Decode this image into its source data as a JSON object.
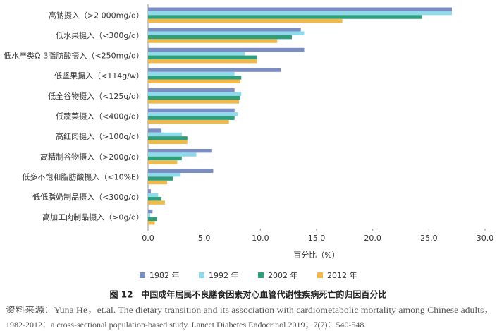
{
  "chart_data": {
    "type": "hbar",
    "categories": [
      "高钠摄入（>2 000mg/d）",
      "低水果摄入（<300g/d）",
      "低水产类Ω-3脂肪酸摄入（<250mg/d）",
      "低坚果摄入（<114g/w）",
      "低全谷物摄入（<125g/d）",
      "低蔬菜摄入（<400g/d）",
      "高红肉摄入（>100g/d）",
      "高精制谷物摄入（>200g/d）",
      "低多不饱和脂肪酸摄入（<10%E）",
      "低低脂奶制品摄入（<300g/d）",
      "高加工肉制品摄入（>0g/d）"
    ],
    "series": [
      {
        "name": "1982 年",
        "color": "#7b8ec4",
        "values": [
          27.05,
          13.6,
          13.9,
          11.8,
          7.7,
          7.7,
          1.2,
          5.7,
          5.8,
          0.25,
          0.4
        ]
      },
      {
        "name": "1992 年",
        "color": "#8ed9ea",
        "values": [
          27.05,
          13.9,
          8.6,
          7.7,
          8.3,
          8.0,
          3.0,
          4.3,
          2.9,
          0.9,
          0.2
        ]
      },
      {
        "name": "2002 年",
        "color": "#2f9e7b",
        "values": [
          24.4,
          12.8,
          9.7,
          8.3,
          8.2,
          7.7,
          3.5,
          3.0,
          2.2,
          1.2,
          0.8
        ]
      },
      {
        "name": "2012 年",
        "color": "#f0b94a",
        "values": [
          17.3,
          11.5,
          9.7,
          8.2,
          8.1,
          7.2,
          3.5,
          2.6,
          1.7,
          1.5,
          0.6
        ]
      }
    ],
    "xlim": [
      0,
      30
    ],
    "xticks": [
      {
        "value": 0,
        "label": "0.0"
      },
      {
        "value": 5,
        "label": "5.0"
      },
      {
        "value": 10,
        "label": "10.0"
      },
      {
        "value": 15,
        "label": "15.0"
      },
      {
        "value": 20,
        "label": "20.0"
      },
      {
        "value": 25,
        "label": "25.0"
      },
      {
        "value": 30,
        "label": "30.0"
      }
    ],
    "x_label": "百分比（%）",
    "caption": "图 12　中国成年居民不良膳食因素对心血管代谢性疾病死亡的归因百分比",
    "source": [
      "资料来源：Yuna He，et.al. The dietary transition and its association with cardiometabolic mortality among Chinese adults，",
      "1982-2012：a cross-sectional population-based study. Lancet Diabetes Endocrinol 2019；7(7)：540-548."
    ]
  }
}
